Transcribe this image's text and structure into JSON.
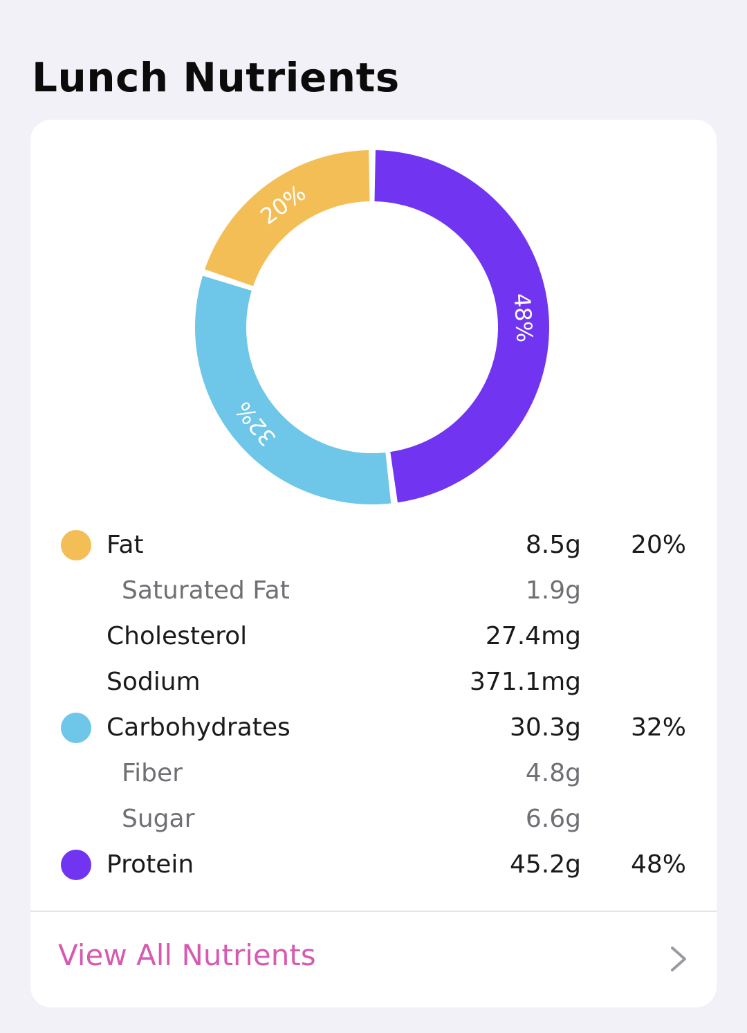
{
  "page": {
    "title": "Lunch Nutrients"
  },
  "chart_data": {
    "type": "pie",
    "style": "donut",
    "slices": [
      {
        "label": "Protein",
        "value": 48,
        "display": "48%",
        "color": "#7135f2"
      },
      {
        "label": "Carbohydrates",
        "value": 32,
        "display": "32%",
        "color": "#6ec6e9"
      },
      {
        "label": "Fat",
        "value": 20,
        "display": "20%",
        "color": "#f4be57"
      }
    ],
    "legend": "none"
  },
  "nutrients": [
    {
      "name": "Fat",
      "amount": "8.5g",
      "percent": "20%",
      "color": "#f4be57"
    },
    {
      "name": "Saturated Fat",
      "amount": "1.9g"
    },
    {
      "name": "Cholesterol",
      "amount": "27.4mg"
    },
    {
      "name": "Sodium",
      "amount": "371.1mg"
    },
    {
      "name": "Carbohydrates",
      "amount": "30.3g",
      "percent": "32%",
      "color": "#6ec6e9"
    },
    {
      "name": "Fiber",
      "amount": "4.8g"
    },
    {
      "name": "Sugar",
      "amount": "6.6g"
    },
    {
      "name": "Protein",
      "amount": "45.2g",
      "percent": "48%",
      "color": "#7135f2"
    }
  ],
  "footer": {
    "link_label": "View All Nutrients",
    "icon": "chevron-right-icon"
  },
  "colors": {
    "link": "#d65ab0",
    "background": "#f2f1f7"
  }
}
